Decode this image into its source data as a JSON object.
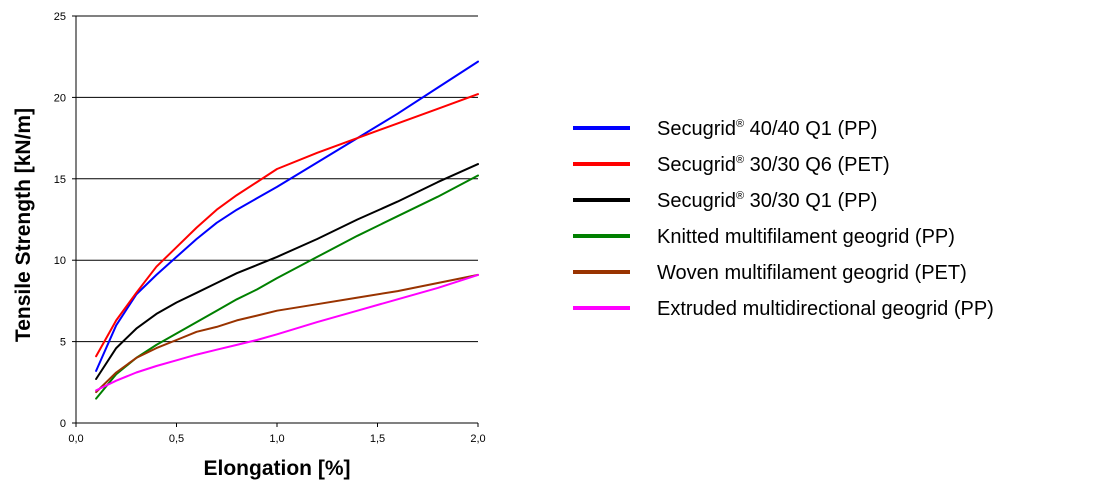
{
  "chart_data": {
    "type": "line",
    "xlabel": "Elongation [%]",
    "ylabel": "Tensile Strength [kN/m]",
    "xlim": [
      0,
      2
    ],
    "ylim": [
      0,
      25
    ],
    "x_ticks": [
      "0,0",
      "0,5",
      "1,0",
      "1,5",
      "2,0"
    ],
    "x_tick_values": [
      0,
      0.5,
      1,
      1.5,
      2
    ],
    "y_ticks": [
      "0",
      "5",
      "10",
      "15",
      "20",
      "25"
    ],
    "y_tick_values": [
      0,
      5,
      10,
      15,
      20,
      25
    ],
    "grid": "horizontal",
    "legend_position": "right",
    "series": [
      {
        "name": "Secugrid® 40/40 Q1 (PP)",
        "legend": {
          "prefix": "Secugrid",
          "sup": "®",
          "suffix": " 40/40 Q1 (PP)"
        },
        "color": "#0000ff",
        "x": [
          0.1,
          0.2,
          0.3,
          0.4,
          0.5,
          0.6,
          0.7,
          0.8,
          0.9,
          1.0,
          1.2,
          1.4,
          1.6,
          1.8,
          2.0
        ],
        "y": [
          3.2,
          6.0,
          7.9,
          9.1,
          10.2,
          11.3,
          12.3,
          13.1,
          13.8,
          14.5,
          16.0,
          17.5,
          19.0,
          20.6,
          22.2
        ]
      },
      {
        "name": "Secugrid® 30/30 Q6 (PET)",
        "legend": {
          "prefix": "Secugrid",
          "sup": "®",
          "suffix": " 30/30 Q6 (PET)"
        },
        "color": "#ff0000",
        "x": [
          0.1,
          0.2,
          0.3,
          0.4,
          0.5,
          0.6,
          0.7,
          0.8,
          0.9,
          1.0,
          1.2,
          1.4,
          1.6,
          1.8,
          2.0
        ],
        "y": [
          4.1,
          6.3,
          8.0,
          9.6,
          10.8,
          12.0,
          13.1,
          14.0,
          14.8,
          15.6,
          16.6,
          17.5,
          18.4,
          19.3,
          20.2
        ]
      },
      {
        "name": "Secugrid® 30/30 Q1 (PP)",
        "legend": {
          "prefix": "Secugrid",
          "sup": "®",
          "suffix": " 30/30 Q1 (PP)"
        },
        "color": "#000000",
        "x": [
          0.1,
          0.2,
          0.3,
          0.4,
          0.5,
          0.6,
          0.7,
          0.8,
          0.9,
          1.0,
          1.2,
          1.4,
          1.6,
          1.8,
          2.0
        ],
        "y": [
          2.7,
          4.6,
          5.8,
          6.7,
          7.4,
          8.0,
          8.6,
          9.2,
          9.7,
          10.2,
          11.3,
          12.5,
          13.6,
          14.8,
          15.9
        ]
      },
      {
        "name": "Knitted multifilament geogrid (PP)",
        "legend": {
          "prefix": "Knitted multifilament geogrid (PP)",
          "sup": "",
          "suffix": ""
        },
        "color": "#008000",
        "x": [
          0.1,
          0.2,
          0.3,
          0.4,
          0.5,
          0.6,
          0.7,
          0.8,
          0.9,
          1.0,
          1.2,
          1.4,
          1.6,
          1.8,
          2.0
        ],
        "y": [
          1.5,
          3.0,
          4.0,
          4.8,
          5.5,
          6.2,
          6.9,
          7.6,
          8.2,
          8.9,
          10.2,
          11.5,
          12.7,
          13.9,
          15.2
        ]
      },
      {
        "name": "Woven multifilament geogrid (PET)",
        "legend": {
          "prefix": "Woven multifilament geogrid (PET)",
          "sup": "",
          "suffix": ""
        },
        "color": "#993300",
        "x": [
          0.1,
          0.2,
          0.3,
          0.4,
          0.5,
          0.6,
          0.7,
          0.8,
          0.9,
          1.0,
          1.2,
          1.4,
          1.6,
          1.8,
          2.0
        ],
        "y": [
          1.9,
          3.1,
          4.0,
          4.6,
          5.1,
          5.6,
          5.9,
          6.3,
          6.6,
          6.9,
          7.3,
          7.7,
          8.1,
          8.6,
          9.1
        ]
      },
      {
        "name": "Extruded multidirectional geogrid (PP)",
        "legend": {
          "prefix": "Extruded multidirectional geogrid (PP)",
          "sup": "",
          "suffix": ""
        },
        "color": "#ff00ff",
        "x": [
          0.1,
          0.2,
          0.3,
          0.4,
          0.5,
          0.6,
          0.7,
          0.8,
          0.9,
          1.0,
          1.2,
          1.4,
          1.6,
          1.8,
          2.0
        ],
        "y": [
          2.0,
          2.6,
          3.1,
          3.5,
          3.85,
          4.2,
          4.5,
          4.8,
          5.1,
          5.45,
          6.2,
          6.9,
          7.6,
          8.3,
          9.1
        ]
      }
    ]
  }
}
